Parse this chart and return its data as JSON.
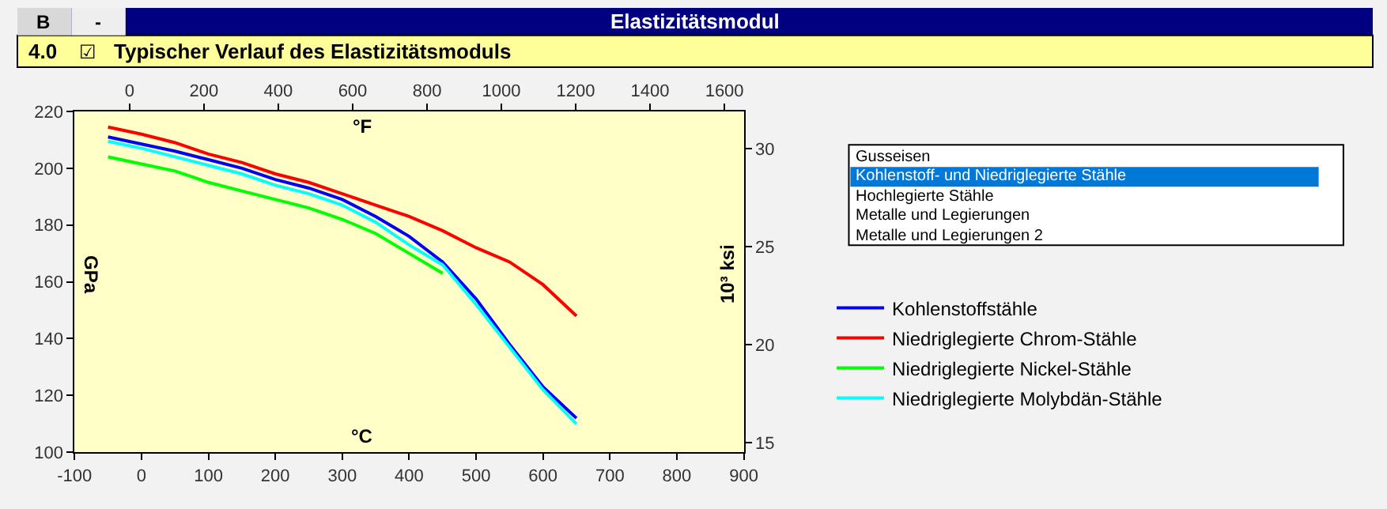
{
  "chart_data": {
    "type": "line",
    "title": "Elastizitätsmodul",
    "subtitle": "Typischer Verlauf des Elastizitätsmoduls",
    "xlabel": "°C",
    "x2label": "°F",
    "ylabel": "GPa",
    "y2label": "10³ ksi",
    "annotations": [
      "B",
      "-",
      "4.0",
      "☑",
      "Gusseisen",
      "Kohlenstoff- und Niedriglegierte Stähle",
      "Hochlegierte Stähle",
      "Metalle und Legierungen",
      "Metalle und Legierungen 2"
    ],
    "x": [
      -50,
      0,
      50,
      100,
      150,
      200,
      250,
      300,
      350,
      400,
      450,
      500,
      550,
      600,
      650
    ],
    "series": [
      {
        "name": "Kohlenstoffstähle",
        "color": "#0000ff",
        "values": [
          211,
          208.5,
          206,
          203,
          200,
          196,
          193,
          189,
          183,
          176,
          167,
          154,
          138,
          123,
          112
        ]
      },
      {
        "name": "Niedriglegierte Chrom-Stähle",
        "color": "#ff0000",
        "values": [
          214.5,
          212,
          209,
          205,
          202,
          198,
          195,
          191,
          187,
          183,
          178,
          172,
          167,
          159,
          148
        ]
      },
      {
        "name": "Niedriglegierte Nickel-Stähle",
        "color": "#00ff00",
        "values": [
          204,
          201.5,
          199,
          195,
          192,
          189,
          186,
          182,
          177,
          170,
          163,
          null,
          null,
          null,
          null
        ]
      },
      {
        "name": "Niedriglegierte Molybdän-Stähle",
        "color": "#00ffff",
        "values": [
          209.5,
          207,
          204,
          201,
          198,
          194,
          191,
          187,
          181,
          173,
          166,
          152,
          137,
          122,
          110
        ]
      }
    ],
    "xlim": [
      -100,
      900
    ],
    "xticks": [
      -100,
      0,
      100,
      200,
      300,
      400,
      500,
      600,
      700,
      800,
      900
    ],
    "x2lim": [
      -148,
      1652
    ],
    "x2ticks": [
      0,
      200,
      400,
      600,
      800,
      1000,
      1200,
      1400,
      1600
    ],
    "ylim": [
      100,
      220
    ],
    "yticks": [
      100,
      120,
      140,
      160,
      180,
      200,
      220
    ],
    "y2lim": [
      14.5,
      31.9
    ],
    "y2ticks": [
      15,
      20,
      25,
      30
    ],
    "grid": false,
    "legend": "right",
    "marker": "none",
    "line_style": "solid"
  }
}
